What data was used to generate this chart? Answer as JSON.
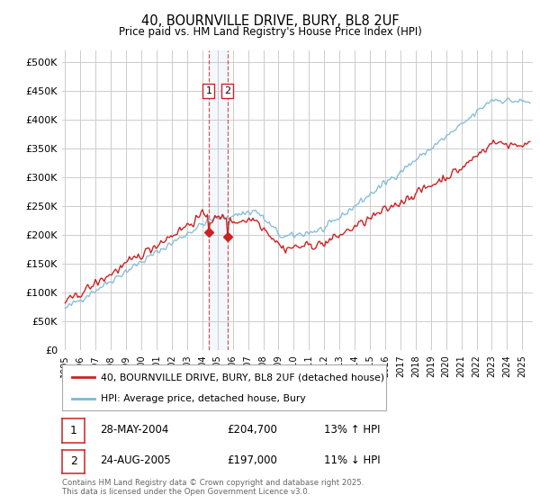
{
  "title": "40, BOURNVILLE DRIVE, BURY, BL8 2UF",
  "subtitle": "Price paid vs. HM Land Registry's House Price Index (HPI)",
  "ylabel_ticks": [
    "£0",
    "£50K",
    "£100K",
    "£150K",
    "£200K",
    "£250K",
    "£300K",
    "£350K",
    "£400K",
    "£450K",
    "£500K"
  ],
  "y_values": [
    0,
    50000,
    100000,
    150000,
    200000,
    250000,
    300000,
    350000,
    400000,
    450000,
    500000
  ],
  "ylim": [
    0,
    520000
  ],
  "x_start_year": 1995,
  "x_end_year": 2025,
  "transaction1": {
    "label": "1",
    "date": "28-MAY-2004",
    "price": 204700,
    "hpi_change": "13% ↑ HPI",
    "year": 2004.42
  },
  "transaction2": {
    "label": "2",
    "date": "24-AUG-2005",
    "price": 197000,
    "hpi_change": "11% ↓ HPI",
    "year": 2005.65
  },
  "legend_line1": "40, BOURNVILLE DRIVE, BURY, BL8 2UF (detached house)",
  "legend_line2": "HPI: Average price, detached house, Bury",
  "footer": "Contains HM Land Registry data © Crown copyright and database right 2025.\nThis data is licensed under the Open Government Licence v3.0.",
  "hpi_line_color": "#7db8d8",
  "price_line_color": "#cc2222",
  "background_color": "#ffffff",
  "grid_color": "#cccccc",
  "dashed_line_color": "#cc2222",
  "span_color": "#ddaaaa"
}
